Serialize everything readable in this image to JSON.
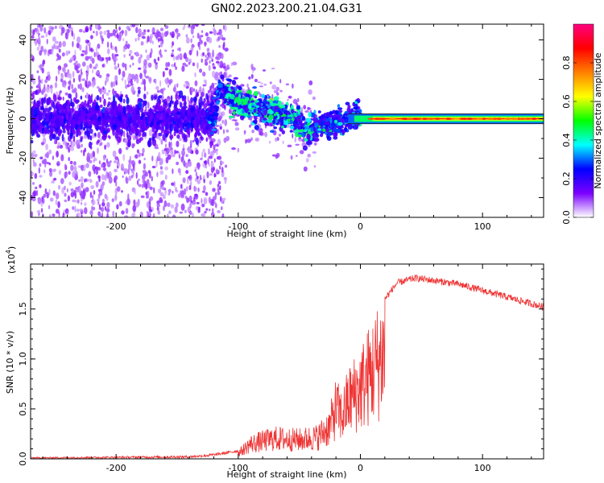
{
  "figure_title": "GN02.2023.200.21.04.G31",
  "chart_data": [
    {
      "type": "heatmap",
      "title": "GN02.2023.200.21.04.G31",
      "xlabel": "Height of straight line (km)",
      "ylabel": "Frequency (Hz)",
      "xlim": [
        -270,
        150
      ],
      "ylim": [
        -50,
        48
      ],
      "xticks": [
        -200,
        -100,
        0,
        100
      ],
      "yticks": [
        -40,
        -20,
        0,
        20,
        40
      ],
      "colorbar": {
        "label": "Normalized spectral amplitude",
        "range": [
          0.0,
          1.0
        ],
        "ticks": [
          0.0,
          0.2,
          0.4,
          0.6,
          0.8
        ],
        "tick_labels": [
          "0.0",
          "0.2",
          "0.4",
          "0.6",
          "0.8"
        ],
        "colormap": "rainbow",
        "stops": [
          "#ffffff",
          "#7a00ff",
          "#0000ff",
          "#00ffff",
          "#00ff00",
          "#ffff00",
          "#ff8000",
          "#ff0000",
          "#ff0080"
        ]
      },
      "centerline": [
        {
          "x": -270,
          "f": 0
        },
        {
          "x": -120,
          "f": 0
        },
        {
          "x": -115,
          "f": 16
        },
        {
          "x": -100,
          "f": 8
        },
        {
          "x": -80,
          "f": 4
        },
        {
          "x": -60,
          "f": 2
        },
        {
          "x": -45,
          "f": -6
        },
        {
          "x": -30,
          "f": -4
        },
        {
          "x": -10,
          "f": 0
        },
        {
          "x": 0,
          "f": 2
        },
        {
          "x": 15,
          "f": 0
        },
        {
          "x": 150,
          "f": 0
        }
      ]
    },
    {
      "type": "line",
      "xlabel": "Height of straight line (km)",
      "ylabel": "SNR (10 * v/v)",
      "scale_label": "(x10",
      "scale_exp": "4",
      "scale_close": ")",
      "xlim": [
        -270,
        150
      ],
      "ylim": [
        0.0,
        1.95
      ],
      "xticks": [
        -200,
        -100,
        0,
        100
      ],
      "yticks": [
        0.0,
        0.5,
        1.0,
        1.5
      ],
      "ytick_labels": [
        "0.0",
        "0.5",
        "1.0",
        "1.5"
      ],
      "color": "#ee3333",
      "envelope": [
        {
          "x": -270,
          "y": 0.01
        },
        {
          "x": -140,
          "y": 0.02
        },
        {
          "x": -120,
          "y": 0.04
        },
        {
          "x": -100,
          "y": 0.08
        },
        {
          "x": -90,
          "y": 0.22
        },
        {
          "x": -70,
          "y": 0.3
        },
        {
          "x": -50,
          "y": 0.28
        },
        {
          "x": -35,
          "y": 0.32
        },
        {
          "x": -25,
          "y": 0.48
        },
        {
          "x": -20,
          "y": 0.75
        },
        {
          "x": -15,
          "y": 0.62
        },
        {
          "x": -10,
          "y": 0.85
        },
        {
          "x": 0,
          "y": 1.05
        },
        {
          "x": 10,
          "y": 1.3
        },
        {
          "x": 20,
          "y": 1.6
        },
        {
          "x": 30,
          "y": 1.76
        },
        {
          "x": 45,
          "y": 1.81
        },
        {
          "x": 80,
          "y": 1.75
        },
        {
          "x": 120,
          "y": 1.62
        },
        {
          "x": 150,
          "y": 1.52
        }
      ]
    }
  ]
}
